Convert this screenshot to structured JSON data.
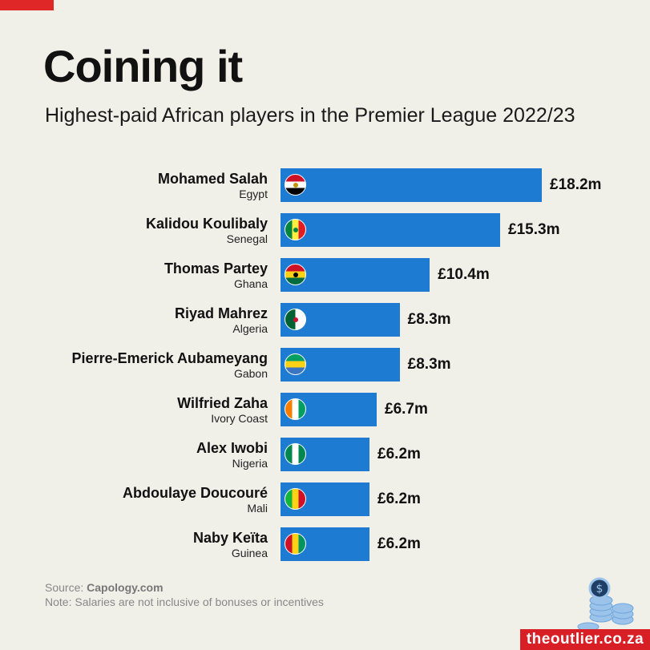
{
  "header": {
    "title": "Coining it",
    "subtitle": "Highest-paid African players in the Premier League 2022/23"
  },
  "colors": {
    "bar": "#1e7bd2",
    "background": "#f0efe8",
    "accent": "#d91f26"
  },
  "chart_data": {
    "type": "bar",
    "orientation": "horizontal",
    "categories": [
      "Mohamed Salah",
      "Kalidou Koulibaly",
      "Thomas Partey",
      "Riyad Mahrez",
      "Pierre-Emerick Aubameyang",
      "Wilfried Zaha",
      "Alex Iwobi",
      "Abdoulaye Doucouré",
      "Naby Keïta"
    ],
    "countries": [
      "Egypt",
      "Senegal",
      "Ghana",
      "Algeria",
      "Gabon",
      "Ivory Coast",
      "Nigeria",
      "Mali",
      "Guinea"
    ],
    "values": [
      18.2,
      15.3,
      10.4,
      8.3,
      8.3,
      6.7,
      6.2,
      6.2,
      6.2
    ],
    "labels": [
      "£18.2m",
      "£15.3m",
      "£10.4m",
      "£8.3m",
      "£8.3m",
      "£6.7m",
      "£6.2m",
      "£6.2m",
      "£6.2m"
    ],
    "flags": [
      {
        "stripes": [
          "#ce1126",
          "#ffffff",
          "#000000"
        ],
        "dir": "h",
        "emblem": "#c09300"
      },
      {
        "stripes": [
          "#00853f",
          "#fdef42",
          "#e31b23"
        ],
        "dir": "v",
        "emblem": "#00853f"
      },
      {
        "stripes": [
          "#ce1126",
          "#fcd116",
          "#006b3f"
        ],
        "dir": "h",
        "emblem": "#000000"
      },
      {
        "stripes": [
          "#006233",
          "#ffffff"
        ],
        "dir": "v",
        "emblem": "#d21034"
      },
      {
        "stripes": [
          "#009e60",
          "#fcd116",
          "#3a75c4"
        ],
        "dir": "h"
      },
      {
        "stripes": [
          "#f77f00",
          "#ffffff",
          "#009e60"
        ],
        "dir": "v"
      },
      {
        "stripes": [
          "#008751",
          "#ffffff",
          "#008751"
        ],
        "dir": "v"
      },
      {
        "stripes": [
          "#14b53a",
          "#fcd116",
          "#ce1126"
        ],
        "dir": "v"
      },
      {
        "stripes": [
          "#ce1126",
          "#fcd116",
          "#009460"
        ],
        "dir": "v"
      }
    ],
    "xlim": [
      0,
      18.2
    ],
    "grid": false
  },
  "footer": {
    "source_prefix": "Source: ",
    "source": "Capology.com",
    "note": "Note: Salaries are not inclusive of bonuses or incentives",
    "brand": "theoutlier.co.za"
  }
}
